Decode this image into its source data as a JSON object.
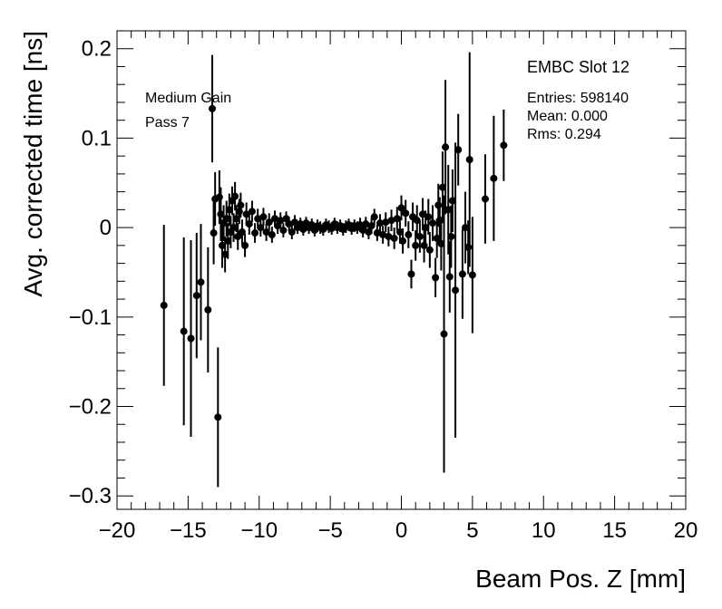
{
  "chart_data": {
    "type": "scatter",
    "xlabel": "Beam Pos. Z [mm]",
    "ylabel": "Avg. corrected time [ns]",
    "xlim": [
      -20,
      20
    ],
    "ylim": [
      -0.315,
      0.22
    ],
    "x_ticks": [
      -20,
      -15,
      -10,
      -5,
      0,
      5,
      10,
      15,
      20
    ],
    "x_tick_labels": [
      "−20",
      "−15",
      "−10",
      "−5",
      "0",
      "5",
      "10",
      "15",
      "20"
    ],
    "y_ticks": [
      -0.3,
      -0.2,
      -0.1,
      0,
      0.1,
      0.2
    ],
    "y_tick_labels": [
      "−0.3",
      "−0.2",
      "−0.1",
      "0",
      "0.1",
      "0.2"
    ],
    "grid": false,
    "marker_color": "#000000",
    "annotations": {
      "top_left": [
        "Medium Gain",
        "Pass 7"
      ],
      "title": "EMBC Slot 12",
      "stats": [
        "Entries: 598140",
        "Mean: 0.000",
        "Rms: 0.294"
      ]
    },
    "points": [
      {
        "x": -16.7,
        "y": -0.087,
        "err": 0.09
      },
      {
        "x": -15.3,
        "y": -0.116,
        "err": 0.105
      },
      {
        "x": -14.8,
        "y": -0.124,
        "err": 0.11
      },
      {
        "x": -14.4,
        "y": -0.076,
        "err": 0.07
      },
      {
        "x": -14.1,
        "y": -0.061,
        "err": 0.065
      },
      {
        "x": -13.6,
        "y": -0.092,
        "err": 0.07
      },
      {
        "x": -13.3,
        "y": 0.133,
        "err": 0.06
      },
      {
        "x": -13.2,
        "y": -0.006,
        "err": 0.035
      },
      {
        "x": -13.1,
        "y": 0.032,
        "err": 0.03
      },
      {
        "x": -12.9,
        "y": -0.212,
        "err": 0.078
      },
      {
        "x": -12.8,
        "y": 0.034,
        "err": 0.03
      },
      {
        "x": -12.7,
        "y": 0.015,
        "err": 0.03
      },
      {
        "x": -12.6,
        "y": -0.02,
        "err": 0.025
      },
      {
        "x": -12.5,
        "y": 0.005,
        "err": 0.02
      },
      {
        "x": -12.4,
        "y": -0.03,
        "err": 0.02
      },
      {
        "x": -12.3,
        "y": 0.01,
        "err": 0.02
      },
      {
        "x": -12.2,
        "y": -0.015,
        "err": 0.02
      },
      {
        "x": -12.1,
        "y": 0.02,
        "err": 0.018
      },
      {
        "x": -12.0,
        "y": -0.005,
        "err": 0.018
      },
      {
        "x": -11.9,
        "y": 0.03,
        "err": 0.016
      },
      {
        "x": -11.8,
        "y": 0.0,
        "err": 0.016
      },
      {
        "x": -11.7,
        "y": 0.035,
        "err": 0.016
      },
      {
        "x": -11.6,
        "y": 0.01,
        "err": 0.015
      },
      {
        "x": -11.5,
        "y": -0.01,
        "err": 0.015
      },
      {
        "x": -11.4,
        "y": 0.018,
        "err": 0.014
      },
      {
        "x": -11.3,
        "y": 0.025,
        "err": 0.014
      },
      {
        "x": -11.2,
        "y": -0.005,
        "err": 0.014
      },
      {
        "x": -11.0,
        "y": -0.02,
        "err": 0.013
      },
      {
        "x": -10.9,
        "y": 0.015,
        "err": 0.013
      },
      {
        "x": -10.7,
        "y": 0.004,
        "err": 0.012
      },
      {
        "x": -10.5,
        "y": 0.018,
        "err": 0.012
      },
      {
        "x": -10.3,
        "y": -0.006,
        "err": 0.011
      },
      {
        "x": -10.1,
        "y": 0.01,
        "err": 0.011
      },
      {
        "x": -9.9,
        "y": 0.0,
        "err": 0.01
      },
      {
        "x": -9.7,
        "y": 0.012,
        "err": 0.01
      },
      {
        "x": -9.5,
        "y": -0.005,
        "err": 0.01
      },
      {
        "x": -9.3,
        "y": 0.006,
        "err": 0.01
      },
      {
        "x": -9.1,
        "y": -0.008,
        "err": 0.009
      },
      {
        "x": -8.9,
        "y": 0.01,
        "err": 0.009
      },
      {
        "x": -8.7,
        "y": 0.002,
        "err": 0.009
      },
      {
        "x": -8.5,
        "y": 0.008,
        "err": 0.009
      },
      {
        "x": -8.3,
        "y": -0.003,
        "err": 0.008
      },
      {
        "x": -8.1,
        "y": 0.01,
        "err": 0.008
      },
      {
        "x": -7.9,
        "y": 0.004,
        "err": 0.008
      },
      {
        "x": -7.7,
        "y": -0.005,
        "err": 0.008
      },
      {
        "x": -7.5,
        "y": 0.006,
        "err": 0.008
      },
      {
        "x": -7.3,
        "y": 0.0,
        "err": 0.007
      },
      {
        "x": -7.1,
        "y": 0.004,
        "err": 0.007
      },
      {
        "x": -6.9,
        "y": -0.002,
        "err": 0.007
      },
      {
        "x": -6.7,
        "y": 0.005,
        "err": 0.007
      },
      {
        "x": -6.5,
        "y": 0.0,
        "err": 0.007
      },
      {
        "x": -6.3,
        "y": 0.003,
        "err": 0.007
      },
      {
        "x": -6.1,
        "y": -0.003,
        "err": 0.007
      },
      {
        "x": -5.9,
        "y": 0.002,
        "err": 0.007
      },
      {
        "x": -5.7,
        "y": 0.0,
        "err": 0.007
      },
      {
        "x": -5.5,
        "y": -0.002,
        "err": 0.007
      },
      {
        "x": -5.3,
        "y": 0.003,
        "err": 0.007
      },
      {
        "x": -5.1,
        "y": 0.001,
        "err": 0.007
      },
      {
        "x": -4.9,
        "y": -0.001,
        "err": 0.007
      },
      {
        "x": -4.7,
        "y": 0.004,
        "err": 0.007
      },
      {
        "x": -4.5,
        "y": 0.0,
        "err": 0.007
      },
      {
        "x": -4.3,
        "y": 0.002,
        "err": 0.007
      },
      {
        "x": -4.1,
        "y": -0.002,
        "err": 0.007
      },
      {
        "x": -3.9,
        "y": 0.001,
        "err": 0.007
      },
      {
        "x": -3.7,
        "y": 0.003,
        "err": 0.007
      },
      {
        "x": -3.5,
        "y": -0.001,
        "err": 0.007
      },
      {
        "x": -3.3,
        "y": 0.002,
        "err": 0.007
      },
      {
        "x": -3.1,
        "y": 0.0,
        "err": 0.007
      },
      {
        "x": -2.9,
        "y": 0.003,
        "err": 0.008
      },
      {
        "x": -2.7,
        "y": -0.003,
        "err": 0.008
      },
      {
        "x": -2.5,
        "y": 0.004,
        "err": 0.008
      },
      {
        "x": -2.3,
        "y": -0.005,
        "err": 0.008
      },
      {
        "x": -2.1,
        "y": 0.002,
        "err": 0.009
      },
      {
        "x": -1.9,
        "y": 0.012,
        "err": 0.009
      },
      {
        "x": -1.7,
        "y": -0.006,
        "err": 0.009
      },
      {
        "x": -1.5,
        "y": 0.005,
        "err": 0.01
      },
      {
        "x": -1.3,
        "y": -0.008,
        "err": 0.01
      },
      {
        "x": -1.1,
        "y": 0.006,
        "err": 0.011
      },
      {
        "x": -0.9,
        "y": -0.01,
        "err": 0.011
      },
      {
        "x": -0.7,
        "y": 0.008,
        "err": 0.012
      },
      {
        "x": -0.5,
        "y": -0.012,
        "err": 0.012
      },
      {
        "x": -0.3,
        "y": 0.01,
        "err": 0.013
      },
      {
        "x": -0.1,
        "y": -0.005,
        "err": 0.013
      },
      {
        "x": 0.0,
        "y": 0.022,
        "err": 0.014
      },
      {
        "x": 0.1,
        "y": -0.015,
        "err": 0.014
      },
      {
        "x": 0.3,
        "y": 0.016,
        "err": 0.015
      },
      {
        "x": 0.5,
        "y": -0.008,
        "err": 0.015
      },
      {
        "x": 0.7,
        "y": -0.052,
        "err": 0.016
      },
      {
        "x": 0.8,
        "y": 0.012,
        "err": 0.016
      },
      {
        "x": 1.0,
        "y": -0.02,
        "err": 0.017
      },
      {
        "x": 1.1,
        "y": 0.008,
        "err": 0.017
      },
      {
        "x": 1.3,
        "y": -0.01,
        "err": 0.018
      },
      {
        "x": 1.5,
        "y": 0.015,
        "err": 0.018
      },
      {
        "x": 1.6,
        "y": -0.02,
        "err": 0.019
      },
      {
        "x": 1.7,
        "y": 0.0,
        "err": 0.019
      },
      {
        "x": 1.9,
        "y": 0.012,
        "err": 0.02
      },
      {
        "x": 2.0,
        "y": -0.025,
        "err": 0.02
      },
      {
        "x": 2.2,
        "y": 0.005,
        "err": 0.02
      },
      {
        "x": 2.4,
        "y": -0.056,
        "err": 0.022
      },
      {
        "x": 2.5,
        "y": -0.012,
        "err": 0.022
      },
      {
        "x": 2.6,
        "y": 0.025,
        "err": 0.024
      },
      {
        "x": 2.7,
        "y": 0.008,
        "err": 0.026
      },
      {
        "x": 2.8,
        "y": -0.018,
        "err": 0.03
      },
      {
        "x": 2.9,
        "y": 0.045,
        "err": 0.04
      },
      {
        "x": 3.0,
        "y": -0.119,
        "err": 0.155
      },
      {
        "x": 3.1,
        "y": 0.09,
        "err": 0.075
      },
      {
        "x": 3.3,
        "y": 0.02,
        "err": 0.05
      },
      {
        "x": 3.4,
        "y": -0.055,
        "err": 0.04
      },
      {
        "x": 3.5,
        "y": -0.01,
        "err": 0.035
      },
      {
        "x": 3.6,
        "y": 0.03,
        "err": 0.035
      },
      {
        "x": 3.8,
        "y": -0.07,
        "err": 0.165
      },
      {
        "x": 4.0,
        "y": 0.087,
        "err": 0.04
      },
      {
        "x": 4.3,
        "y": -0.052,
        "err": 0.05
      },
      {
        "x": 4.5,
        "y": 0.0,
        "err": 0.04
      },
      {
        "x": 4.7,
        "y": -0.022,
        "err": 0.03
      },
      {
        "x": 4.8,
        "y": 0.076,
        "err": 0.12
      },
      {
        "x": 5.0,
        "y": -0.053,
        "err": 0.065
      },
      {
        "x": 5.9,
        "y": 0.032,
        "err": 0.05
      },
      {
        "x": 6.5,
        "y": 0.055,
        "err": 0.07
      },
      {
        "x": 7.2,
        "y": 0.092,
        "err": 0.04
      }
    ]
  }
}
